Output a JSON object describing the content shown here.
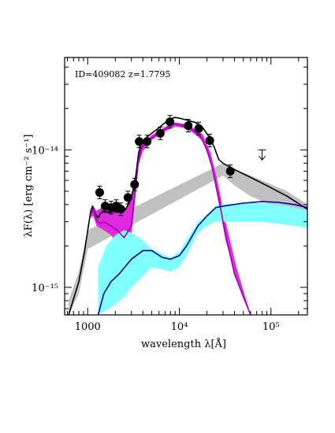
{
  "chart_data": {
    "type": "scatter",
    "annotation": "ID=409082 z=1.7795",
    "xlabel": "wavelength λ[Å]",
    "ylabel": "λF(λ) [erg cm⁻² s⁻¹]",
    "x_scale": "log",
    "y_scale": "log",
    "xlim": [
      560,
      250000
    ],
    "ylim": [
      6.3e-16,
      4.7e-14
    ],
    "x_tick_labels": [
      {
        "value": 1000,
        "label": "1000"
      },
      {
        "value": 10000,
        "label": "10⁴"
      },
      {
        "value": 100000,
        "label": "10⁵"
      }
    ],
    "y_tick_labels": [
      {
        "value": 1e-15,
        "label": "10⁻¹⁵"
      },
      {
        "value": 1e-14,
        "label": "10⁻¹⁴"
      }
    ],
    "photometry": [
      {
        "x": 1350,
        "y": 4.9e-15,
        "xerr": 70
      },
      {
        "x": 1550,
        "y": 3.9e-15,
        "xerr": 70
      },
      {
        "x": 1800,
        "y": 3.8e-15,
        "xerr": 90
      },
      {
        "x": 2050,
        "y": 3.9e-15,
        "xerr": 90
      },
      {
        "x": 2300,
        "y": 3.7e-15,
        "xerr": 100
      },
      {
        "x": 2750,
        "y": 4.5e-15,
        "xerr": 150
      },
      {
        "x": 3250,
        "y": 5.6e-15,
        "xerr": 200
      },
      {
        "x": 3650,
        "y": 1.15e-14,
        "xerr": 250
      },
      {
        "x": 4450,
        "y": 1.15e-14,
        "xerr": 300
      },
      {
        "x": 6200,
        "y": 1.32e-14,
        "xerr": 500
      },
      {
        "x": 7900,
        "y": 1.6e-14,
        "xerr": 600
      },
      {
        "x": 12500,
        "y": 1.5e-14,
        "xerr": 900
      },
      {
        "x": 16300,
        "y": 1.43e-14,
        "xerr": 1200
      },
      {
        "x": 21500,
        "y": 1.17e-14,
        "xerr": 1500
      },
      {
        "x": 36000,
        "y": 7e-15,
        "xerr": 3000
      }
    ],
    "upper_limits": [
      {
        "x": 80000,
        "y": 1e-14
      }
    ],
    "series": [
      {
        "role": "total-model",
        "color": "#000000",
        "points": [
          [
            620,
            6.3e-16
          ],
          [
            800,
            1.1e-15
          ],
          [
            920,
            1.8e-15
          ],
          [
            1000,
            2.6e-15
          ],
          [
            1080,
            3.6e-15
          ],
          [
            1130,
            3.9e-15
          ],
          [
            1200,
            3.45e-15
          ],
          [
            1300,
            3.2e-15
          ],
          [
            1400,
            3.5e-15
          ],
          [
            1500,
            3.6e-15
          ],
          [
            1700,
            3.5e-15
          ],
          [
            2000,
            3.6e-15
          ],
          [
            2300,
            3.5e-15
          ],
          [
            2600,
            3.7e-15
          ],
          [
            3000,
            4.5e-15
          ],
          [
            3300,
            6e-15
          ],
          [
            3600,
            9.5e-15
          ],
          [
            3900,
            1.15e-14
          ],
          [
            4300,
            1.22e-14
          ],
          [
            5000,
            1.32e-14
          ],
          [
            6000,
            1.45e-14
          ],
          [
            7000,
            1.58e-14
          ],
          [
            8000,
            1.68e-14
          ],
          [
            9000,
            1.72e-14
          ],
          [
            10000,
            1.7e-14
          ],
          [
            12000,
            1.65e-14
          ],
          [
            15000,
            1.58e-14
          ],
          [
            18000,
            1.45e-14
          ],
          [
            21000,
            1.25e-14
          ],
          [
            24000,
            1.05e-14
          ],
          [
            27000,
            8.5e-15
          ],
          [
            30000,
            8e-15
          ],
          [
            40000,
            7.2e-15
          ],
          [
            60000,
            6.3e-15
          ],
          [
            90000,
            5.5e-15
          ],
          [
            150000,
            4.6e-15
          ],
          [
            250000,
            3.7e-15
          ]
        ]
      },
      {
        "role": "stellar-model",
        "color": "#a100b9",
        "points": [
          [
            1080,
            3.4e-15
          ],
          [
            1150,
            3.7e-15
          ],
          [
            1250,
            3.1e-15
          ],
          [
            1350,
            2.9e-15
          ],
          [
            1500,
            3e-15
          ],
          [
            1800,
            2.8e-15
          ],
          [
            2100,
            2.6e-15
          ],
          [
            2500,
            2.3e-15
          ],
          [
            3000,
            2.8e-15
          ],
          [
            3300,
            5e-15
          ],
          [
            3600,
            8.5e-15
          ],
          [
            3900,
            1.05e-14
          ],
          [
            4500,
            1.15e-14
          ],
          [
            5500,
            1.28e-14
          ],
          [
            7000,
            1.42e-14
          ],
          [
            8000,
            1.52e-14
          ],
          [
            9000,
            1.55e-14
          ],
          [
            11000,
            1.5e-14
          ],
          [
            14000,
            1.4e-14
          ],
          [
            17000,
            1.25e-14
          ],
          [
            20000,
            1e-14
          ],
          [
            23000,
            7.3e-15
          ],
          [
            27000,
            4.4e-15
          ],
          [
            32000,
            2.4e-15
          ],
          [
            40000,
            1.25e-15
          ],
          [
            50000,
            8.5e-16
          ],
          [
            60000,
            6.3e-16
          ]
        ]
      },
      {
        "role": "agn-model",
        "color": "#0000a0",
        "points": [
          [
            1300,
            6.3e-16
          ],
          [
            1500,
            9e-16
          ],
          [
            1800,
            1.1e-15
          ],
          [
            2200,
            1.25e-15
          ],
          [
            3000,
            1.6e-15
          ],
          [
            4000,
            1.85e-15
          ],
          [
            5000,
            1.85e-15
          ],
          [
            6500,
            1.65e-15
          ],
          [
            8000,
            1.6e-15
          ],
          [
            10000,
            1.7e-15
          ],
          [
            12000,
            2e-15
          ],
          [
            14000,
            2.4e-15
          ],
          [
            16000,
            2.8e-15
          ],
          [
            20000,
            3.3e-15
          ],
          [
            25000,
            3.8e-15
          ],
          [
            30000,
            3.9e-15
          ],
          [
            50000,
            4.1e-15
          ],
          [
            80000,
            4.2e-15
          ],
          [
            120000,
            4.15e-15
          ],
          [
            180000,
            4e-15
          ],
          [
            250000,
            3.8e-15
          ]
        ]
      }
    ],
    "bands": [
      {
        "role": "total-model-range",
        "color": "#c0c0c0",
        "upper": [
          [
            620,
            8e-16
          ],
          [
            800,
            1.3e-15
          ],
          [
            1000,
            2.6e-15
          ],
          [
            30000,
            8e-15
          ],
          [
            40000,
            7.2e-15
          ],
          [
            60000,
            6.5e-15
          ],
          [
            90000,
            5.8e-15
          ],
          [
            150000,
            5e-15
          ],
          [
            250000,
            4e-15
          ]
        ],
        "lower": [
          [
            620,
            6.3e-16
          ],
          [
            800,
            9e-16
          ],
          [
            1000,
            1.9e-15
          ],
          [
            30000,
            6.5e-15
          ],
          [
            40000,
            5.5e-15
          ],
          [
            60000,
            4.6e-15
          ],
          [
            90000,
            4.1e-15
          ],
          [
            150000,
            3.5e-15
          ],
          [
            250000,
            2.9e-15
          ]
        ]
      },
      {
        "role": "stellar-model-range",
        "color": "#e02ae0",
        "upper": [
          [
            1080,
            3.5e-15
          ],
          [
            1150,
            3.9e-15
          ],
          [
            1250,
            3.6e-15
          ],
          [
            1500,
            3.9e-15
          ],
          [
            1800,
            3.95e-15
          ],
          [
            2100,
            3.7e-15
          ],
          [
            2500,
            3.6e-15
          ],
          [
            3000,
            4.5e-15
          ],
          [
            3300,
            6.2e-15
          ],
          [
            3600,
            9.8e-15
          ],
          [
            4000,
            1.13e-14
          ],
          [
            5000,
            1.28e-14
          ],
          [
            7000,
            1.47e-14
          ],
          [
            9000,
            1.58e-14
          ],
          [
            11000,
            1.55e-14
          ],
          [
            14000,
            1.45e-14
          ],
          [
            18000,
            1.3e-14
          ],
          [
            22000,
            9.5e-15
          ],
          [
            26000,
            6e-15
          ],
          [
            32000,
            3e-15
          ],
          [
            42000,
            1.4e-15
          ],
          [
            60000,
            6.3e-16
          ]
        ],
        "lower": [
          [
            1080,
            3.2e-15
          ],
          [
            1150,
            3.3e-15
          ],
          [
            1250,
            2.8e-15
          ],
          [
            1500,
            2.6e-15
          ],
          [
            1800,
            2.4e-15
          ],
          [
            2100,
            2.1e-15
          ],
          [
            2500,
            1.9e-15
          ],
          [
            3000,
            2.4e-15
          ],
          [
            3300,
            4.4e-15
          ],
          [
            3600,
            7.8e-15
          ],
          [
            4000,
            9.8e-15
          ],
          [
            5000,
            1.18e-14
          ],
          [
            7000,
            1.36e-14
          ],
          [
            9000,
            1.48e-14
          ],
          [
            11000,
            1.45e-14
          ],
          [
            14000,
            1.34e-14
          ],
          [
            18000,
            1.16e-14
          ],
          [
            22000,
            8e-15
          ],
          [
            26000,
            4.6e-15
          ],
          [
            32000,
            2.2e-15
          ],
          [
            42000,
            1.15e-15
          ],
          [
            60000,
            6.3e-16
          ]
        ]
      },
      {
        "role": "agn-model-range",
        "color": "#80ffff",
        "upper": [
          [
            1300,
            1.4e-15
          ],
          [
            1600,
            2e-15
          ],
          [
            2000,
            2.4e-15
          ],
          [
            2500,
            2.6e-15
          ],
          [
            3000,
            2.5e-15
          ],
          [
            4000,
            2.2e-15
          ],
          [
            5000,
            1.9e-15
          ],
          [
            6500,
            1.75e-15
          ],
          [
            8000,
            1.65e-15
          ],
          [
            10000,
            1.8e-15
          ],
          [
            12000,
            2.2e-15
          ],
          [
            14000,
            2.6e-15
          ],
          [
            16000,
            3e-15
          ],
          [
            20000,
            3.4e-15
          ],
          [
            25000,
            3.9e-15
          ],
          [
            30000,
            4e-15
          ],
          [
            50000,
            4.1e-15
          ],
          [
            80000,
            4.1e-15
          ],
          [
            120000,
            4e-15
          ],
          [
            180000,
            3.8e-15
          ],
          [
            250000,
            3.6e-15
          ]
        ],
        "lower": [
          [
            1300,
            6.3e-16
          ],
          [
            1600,
            6.8e-16
          ],
          [
            2000,
            7.5e-16
          ],
          [
            2500,
            8.5e-16
          ],
          [
            3000,
            1e-15
          ],
          [
            4000,
            1.2e-15
          ],
          [
            5000,
            1.4e-15
          ],
          [
            6500,
            1.35e-15
          ],
          [
            8000,
            1.3e-15
          ],
          [
            10000,
            1.4e-15
          ],
          [
            12000,
            1.7e-15
          ],
          [
            14000,
            2.1e-15
          ],
          [
            16000,
            2.5e-15
          ],
          [
            20000,
            2.8e-15
          ],
          [
            25000,
            3e-15
          ],
          [
            30000,
            3e-15
          ],
          [
            50000,
            3e-15
          ],
          [
            80000,
            3e-15
          ],
          [
            120000,
            2.9e-15
          ],
          [
            180000,
            2.8e-15
          ],
          [
            250000,
            2.7e-15
          ]
        ]
      }
    ]
  }
}
